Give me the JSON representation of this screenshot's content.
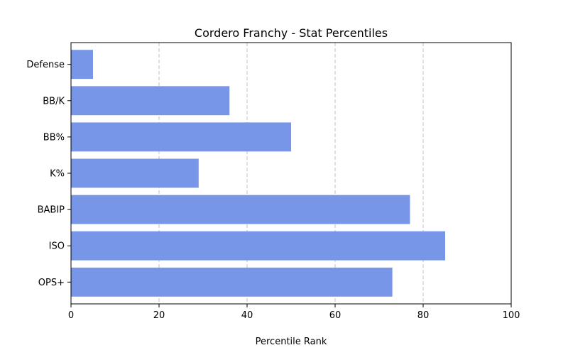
{
  "chart_data": {
    "type": "bar",
    "orientation": "horizontal",
    "title": "Cordero Franchy - Stat Percentiles",
    "xlabel": "Percentile Rank",
    "ylabel": "",
    "xlim": [
      0,
      100
    ],
    "x_ticks": [
      0,
      20,
      40,
      60,
      80,
      100
    ],
    "grid": "vertical dashed",
    "categories": [
      "OPS+",
      "ISO",
      "BABIP",
      "K%",
      "BB%",
      "BB/K",
      "Defense"
    ],
    "values": [
      73,
      85,
      77,
      29,
      50,
      36,
      5
    ],
    "bar_color": "#7896e8"
  }
}
